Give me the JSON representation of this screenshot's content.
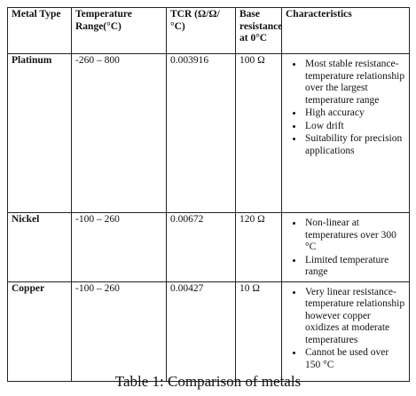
{
  "table": {
    "headers": [
      "Metal Type",
      "Temperature Range(°C)",
      "TCR (Ω/Ω/°C)",
      "Base resistance at 0°C",
      "Characteristics"
    ],
    "rows": [
      {
        "metal": "Platinum",
        "range": "-260 – 800",
        "tcr": "0.003916",
        "base": "100 Ω",
        "characteristics": [
          "Most stable resistance-temperature relationship over the largest temperature range",
          "High accuracy",
          "Low drift",
          "Suitability for precision applications"
        ]
      },
      {
        "metal": "Nickel",
        "range": "-100 – 260",
        "tcr": "0.00672",
        "base": "120 Ω",
        "characteristics": [
          "Non-linear at temperatures over 300 °C",
          "Limited temperature range"
        ]
      },
      {
        "metal": "Copper",
        "range": "-100 – 260",
        "tcr": "0.00427",
        "base": "10 Ω",
        "characteristics": [
          "Very linear resistance-temperature relationship however copper oxidizes at moderate temperatures",
          "Cannot be used over 150 °C"
        ]
      }
    ]
  },
  "caption": "Table 1: Comparison of metals"
}
